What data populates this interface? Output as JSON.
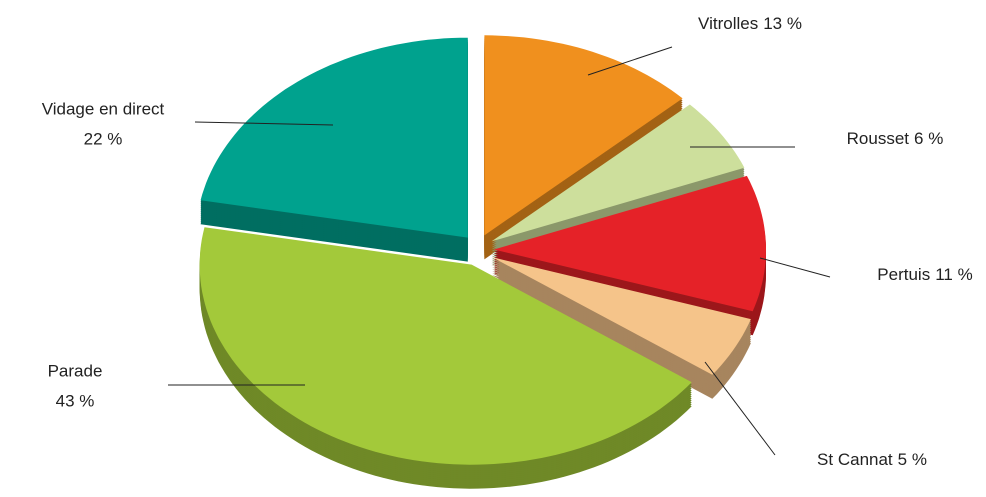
{
  "chart_data": {
    "type": "pie",
    "categories": [
      "Vitrolles",
      "Rousset",
      "Pertuis",
      "St Cannat",
      "Parade",
      "Vidage en direct"
    ],
    "values": [
      13,
      6,
      11,
      5,
      43,
      22
    ],
    "value_labels": [
      "13 %",
      "6 %",
      "11 %",
      "5 %",
      "43 %",
      "22 %"
    ],
    "colors": [
      "#f0901e",
      "#cddf9c",
      "#e52228",
      "#f5c48a",
      "#a3c93a",
      "#00a28e"
    ]
  }
}
